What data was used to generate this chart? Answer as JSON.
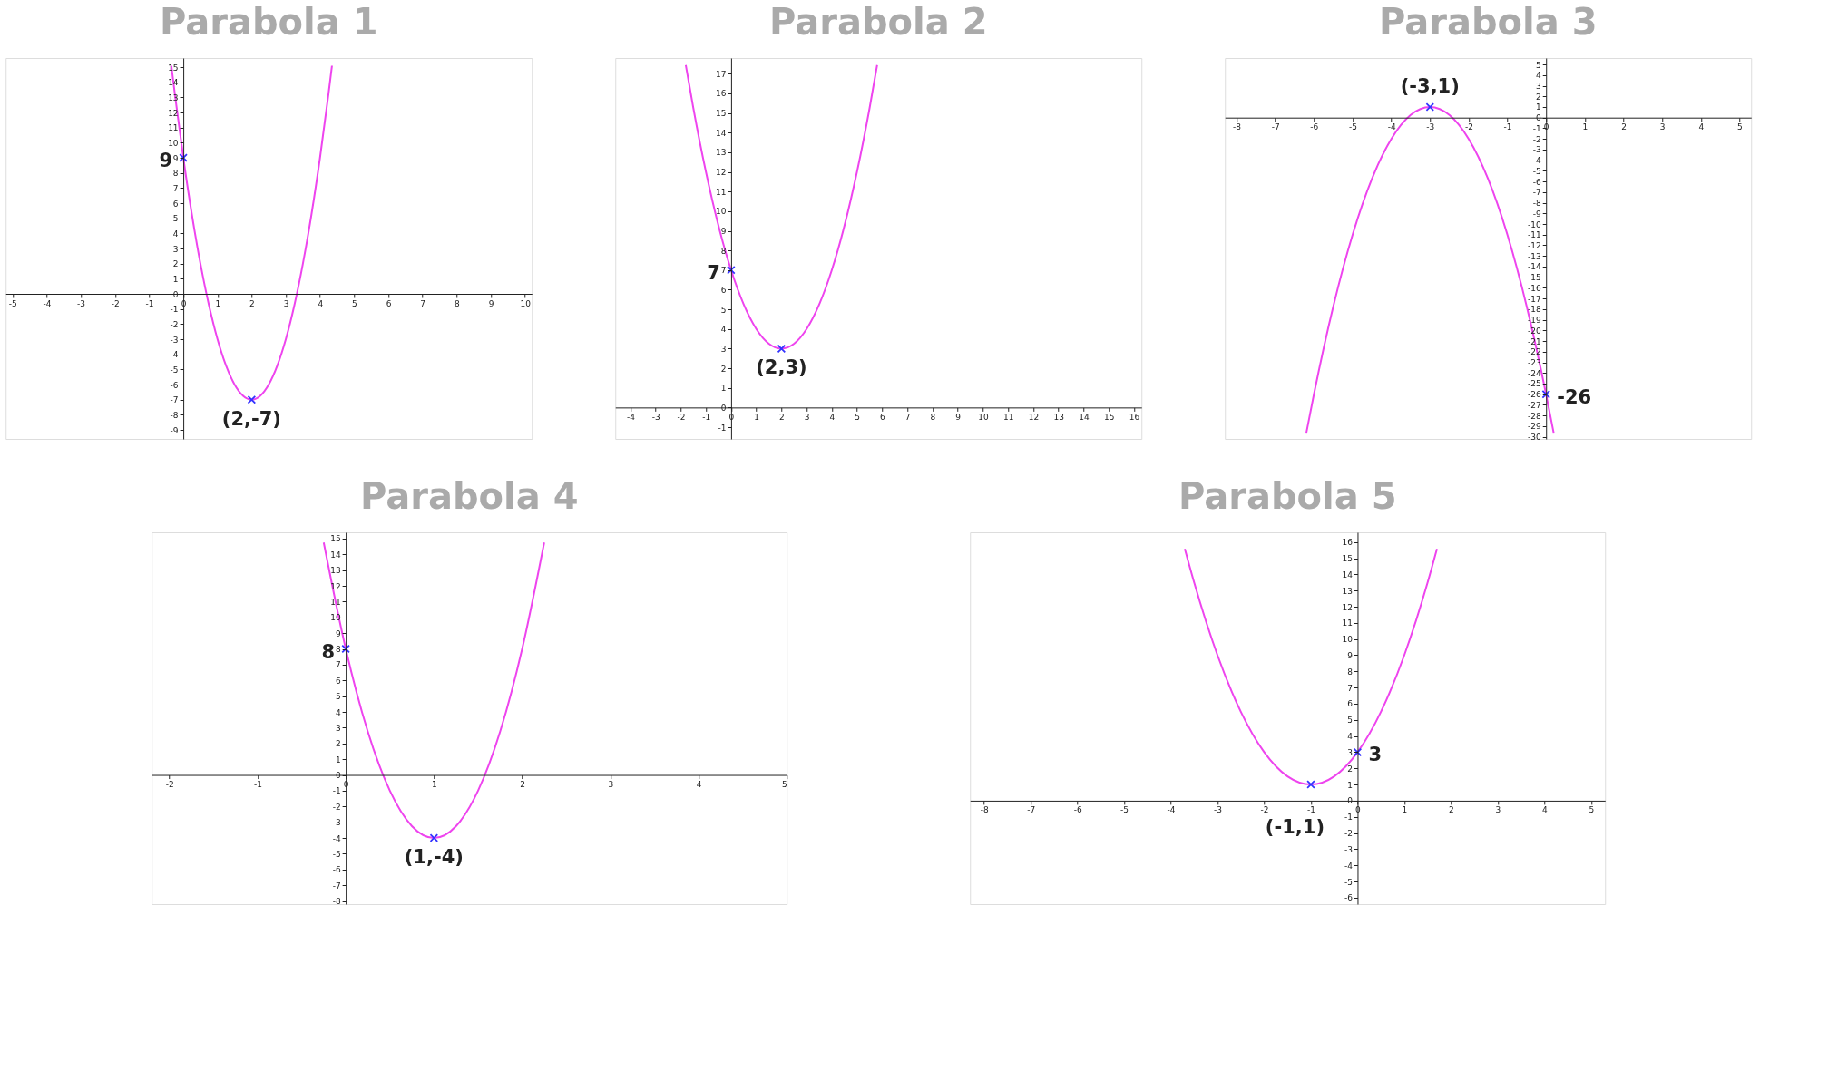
{
  "chart_data": [
    {
      "type": "line",
      "title": "Parabola 1",
      "xlim": [
        -5.2,
        10.2
      ],
      "ylim": [
        -9.6,
        15.6
      ],
      "xticks": [
        -5,
        -4,
        -3,
        -2,
        -1,
        0,
        1,
        2,
        3,
        4,
        5,
        6,
        7,
        8,
        9,
        10
      ],
      "yticks": [
        -9,
        -8,
        -7,
        -6,
        -5,
        -4,
        -3,
        -2,
        -1,
        0,
        1,
        2,
        3,
        4,
        5,
        6,
        7,
        8,
        9,
        10,
        11,
        12,
        13,
        14,
        15
      ],
      "series": [
        {
          "color": "#ee44ee",
          "x": [
            -0.35,
            -0.25,
            0,
            0.25,
            0.5,
            0.75,
            1,
            1.25,
            1.5,
            1.75,
            2,
            2.25,
            2.5,
            2.75,
            3,
            3.25,
            3.5,
            3.75,
            4,
            4.25,
            4.35
          ],
          "values": [
            15.09,
            13.25,
            9,
            5.25,
            2,
            -0.75,
            -3,
            -4.75,
            -6,
            -6.75,
            -7,
            -6.75,
            -6,
            -4.75,
            -3,
            -0.75,
            2,
            5.25,
            9,
            13.25,
            15.09
          ]
        },
        {
          "type": "scatter",
          "marker": "cross",
          "color": "#3333ff",
          "x": [
            0,
            2
          ],
          "values": [
            9,
            -7
          ]
        }
      ],
      "annotations": [
        {
          "text": "9",
          "x": 0,
          "y": 9
        },
        {
          "text": "(2,-7)",
          "x": 2,
          "y": -7
        }
      ]
    },
    {
      "type": "line",
      "title": "Parabola 2",
      "xlim": [
        -4.6,
        16.3
      ],
      "ylim": [
        -1.6,
        17.8
      ],
      "xticks": [
        -4,
        -3,
        -2,
        -1,
        0,
        1,
        2,
        3,
        4,
        5,
        6,
        7,
        8,
        9,
        10,
        11,
        12,
        13,
        14,
        15,
        16
      ],
      "yticks": [
        -1,
        0,
        1,
        2,
        3,
        4,
        5,
        6,
        7,
        8,
        9,
        10,
        11,
        12,
        13,
        14,
        15,
        16,
        17
      ],
      "series": [
        {
          "color": "#ee44ee",
          "x": [
            -1.8,
            -1.5,
            -1,
            -0.5,
            0,
            0.5,
            1,
            1.5,
            2,
            2.5,
            3,
            3.5,
            4,
            4.5,
            5,
            5.5,
            5.8
          ],
          "values": [
            17.44,
            15.25,
            12,
            9.25,
            7,
            5.25,
            4,
            3.25,
            3,
            3.25,
            4,
            5.25,
            7,
            9.25,
            12,
            15.25,
            17.44
          ]
        },
        {
          "type": "scatter",
          "marker": "cross",
          "color": "#3333ff",
          "x": [
            0,
            2
          ],
          "values": [
            7,
            3
          ]
        }
      ],
      "annotations": [
        {
          "text": "7",
          "x": 0,
          "y": 7
        },
        {
          "text": "(2,3)",
          "x": 2,
          "y": 3
        }
      ]
    },
    {
      "type": "line",
      "title": "Parabola 3",
      "xlim": [
        -8.3,
        5.3
      ],
      "ylim": [
        -30.2,
        5.6
      ],
      "xticks": [
        -8,
        -7,
        -6,
        -5,
        -4,
        -3,
        -2,
        -1,
        0,
        1,
        2,
        3,
        4,
        5
      ],
      "yticks": [
        -30,
        -29,
        -28,
        -27,
        -26,
        -25,
        -24,
        -23,
        -22,
        -21,
        -20,
        -19,
        -18,
        -17,
        -16,
        -15,
        -14,
        -13,
        -12,
        -11,
        -10,
        -9,
        -8,
        -7,
        -6,
        -5,
        -4,
        -3,
        -2,
        -1,
        0,
        1,
        2,
        3,
        4,
        5
      ],
      "series": [
        {
          "color": "#ee44ee",
          "x": [
            -6.2,
            -6,
            -5.5,
            -5,
            -4.5,
            -4,
            -3.5,
            -3,
            -2.5,
            -2,
            -1.5,
            -1,
            -0.5,
            0,
            0.2
          ],
          "values": [
            -29.7,
            -26,
            -17.75,
            -11,
            -5.75,
            -2,
            0.25,
            1,
            0.25,
            -2,
            -5.75,
            -11,
            -17.75,
            -26,
            -29.7
          ]
        },
        {
          "type": "scatter",
          "marker": "cross",
          "color": "#3333ff",
          "x": [
            0,
            -3
          ],
          "values": [
            -26,
            1
          ]
        }
      ],
      "annotations": [
        {
          "text": "-26",
          "x": 0,
          "y": -26
        },
        {
          "text": "(-3,1)",
          "x": -3,
          "y": 1
        }
      ]
    },
    {
      "type": "line",
      "title": "Parabola 4",
      "xlim": [
        -2.2,
        5.0
      ],
      "ylim": [
        -8.2,
        15.4
      ],
      "xticks": [
        -2,
        -1,
        0,
        1,
        2,
        3,
        4,
        5
      ],
      "yticks": [
        -8,
        -7,
        -6,
        -5,
        -4,
        -3,
        -2,
        -1,
        0,
        1,
        2,
        3,
        4,
        5,
        6,
        7,
        8,
        9,
        10,
        11,
        12,
        13,
        14,
        15
      ],
      "series": [
        {
          "color": "#ee44ee",
          "x": [
            -0.25,
            0,
            0.25,
            0.5,
            0.75,
            1,
            1.25,
            1.5,
            1.75,
            2,
            2.25
          ],
          "values": [
            14.75,
            8,
            2.75,
            -1,
            -3.25,
            -4,
            -3.25,
            -1,
            2.75,
            8,
            14.75
          ]
        },
        {
          "type": "scatter",
          "marker": "cross",
          "color": "#3333ff",
          "x": [
            0,
            1
          ],
          "values": [
            8,
            -4
          ]
        }
      ],
      "annotations": [
        {
          "text": "8",
          "x": 0,
          "y": 8
        },
        {
          "text": "(1,-4)",
          "x": 1,
          "y": -4
        }
      ]
    },
    {
      "type": "line",
      "title": "Parabola 5",
      "xlim": [
        -8.3,
        5.3
      ],
      "ylim": [
        -6.4,
        16.6
      ],
      "xticks": [
        -8,
        -7,
        -6,
        -5,
        -4,
        -3,
        -2,
        -1,
        0,
        1,
        2,
        3,
        4,
        5
      ],
      "yticks": [
        -6,
        -5,
        -4,
        -3,
        -2,
        -1,
        0,
        1,
        2,
        3,
        4,
        5,
        6,
        7,
        8,
        9,
        10,
        11,
        12,
        13,
        14,
        15,
        16
      ],
      "series": [
        {
          "color": "#ee44ee",
          "x": [
            -3.7,
            -3.5,
            -3,
            -2.5,
            -2,
            -1.5,
            -1,
            -0.5,
            0,
            0.5,
            1,
            1.5,
            1.7
          ],
          "values": [
            15.58,
            13.5,
            9,
            5.5,
            3,
            1.5,
            1,
            1.5,
            3,
            5.5,
            9,
            13.5,
            15.58
          ]
        },
        {
          "type": "scatter",
          "marker": "cross",
          "color": "#3333ff",
          "x": [
            0,
            -1
          ],
          "values": [
            3,
            1
          ]
        }
      ],
      "annotations": [
        {
          "text": "3",
          "x": 0,
          "y": 3
        },
        {
          "text": "(-1,1)",
          "x": -1,
          "y": 1
        }
      ]
    }
  ]
}
